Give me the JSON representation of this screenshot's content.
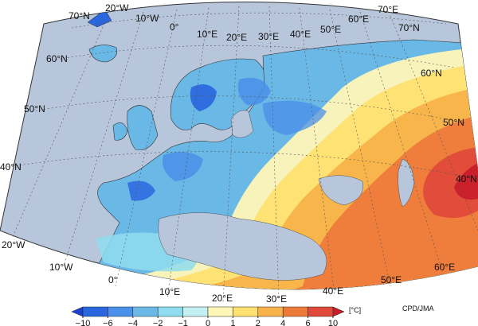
{
  "map": {
    "source_credit": "CPD/JMA",
    "unit_label": "[°C]",
    "lon_labels": [
      "20°W",
      "10°W",
      "0°",
      "10°E",
      "20°E",
      "30°E",
      "40°E",
      "50°E",
      "60°E",
      "70°E"
    ],
    "lat_labels_left": [
      "70°N",
      "60°N",
      "50°N",
      "40°N"
    ],
    "lat_labels_right": [
      "70°N",
      "60°N",
      "50°N",
      "40°N"
    ],
    "bottom_lon_labels": [
      "20°W",
      "10°W",
      "0°",
      "10°E",
      "20°E",
      "30°E",
      "40°E",
      "50°E",
      "60°E"
    ],
    "colors": {
      "ocean": "#b8c6dc",
      "land_base": "#6ab8e6",
      "grid": "#666666"
    }
  },
  "colorbar": {
    "ticks": [
      "−10",
      "−6",
      "−4",
      "−2",
      "−1",
      "0",
      "1",
      "2",
      "4",
      "6",
      "10"
    ],
    "bins": [
      {
        "label": "≤−10",
        "color": "#1f3fd0"
      },
      {
        "label": "−10 to −6",
        "color": "#2a66de"
      },
      {
        "label": "−6 to −4",
        "color": "#4a8fe8"
      },
      {
        "label": "−4 to −2",
        "color": "#6ab8e6"
      },
      {
        "label": "−2 to −1",
        "color": "#8fdcee"
      },
      {
        "label": "−1 to 0",
        "color": "#c5f0f2"
      },
      {
        "label": "0 to 1",
        "color": "#fff6b8"
      },
      {
        "label": "1 to 2",
        "color": "#ffe070"
      },
      {
        "label": "2 to 4",
        "color": "#f7b24a"
      },
      {
        "label": "4 to 6",
        "color": "#ee7a3a"
      },
      {
        "label": "6 to 10",
        "color": "#e04a3a"
      },
      {
        "label": "≥10",
        "color": "#c81e2a"
      }
    ]
  }
}
